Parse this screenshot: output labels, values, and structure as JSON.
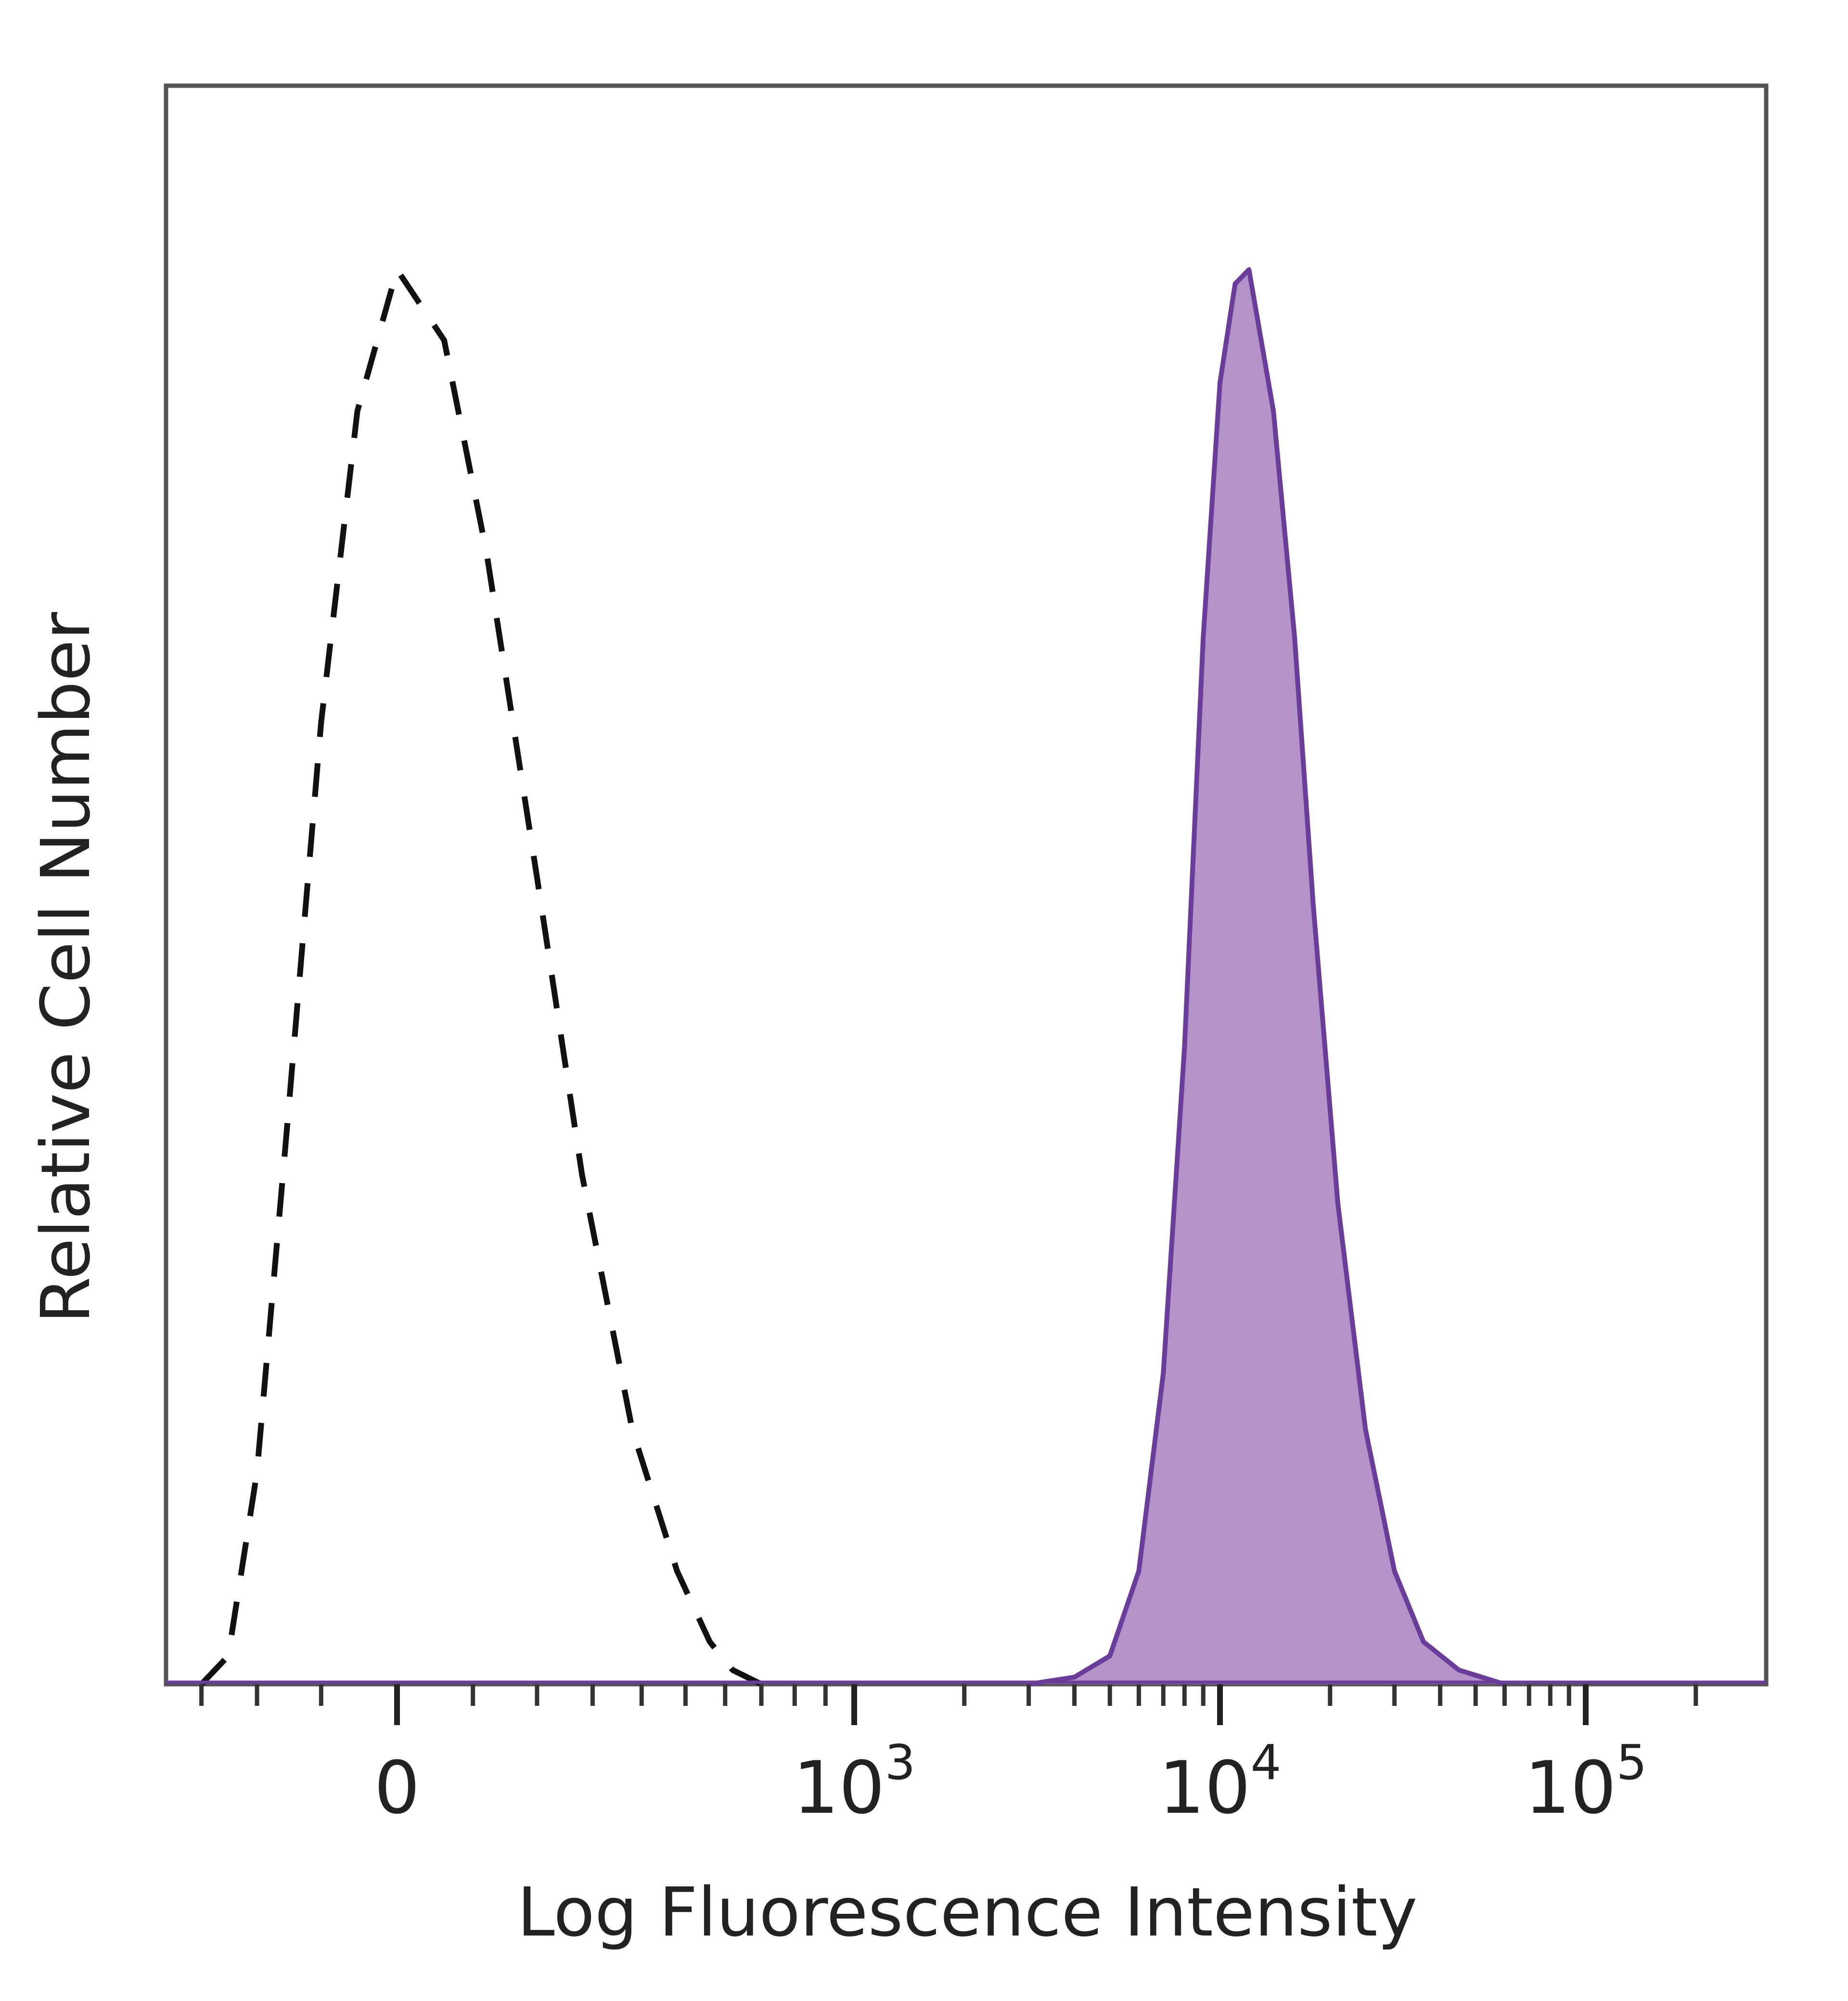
{
  "chart_data": {
    "type": "area",
    "title": "",
    "xlabel": "Log Fluorescence Intensity",
    "ylabel": "Relative Cell Number",
    "x_scale": "biexponential",
    "x_ticks": [
      {
        "value": 0,
        "label": "0",
        "exponent": ""
      },
      {
        "value": 1000,
        "label": "10",
        "exponent": "3"
      },
      {
        "value": 10000,
        "label": "10",
        "exponent": "4"
      },
      {
        "value": 100000,
        "label": "10",
        "exponent": "5"
      }
    ],
    "ylim": [
      0,
      100
    ],
    "grid": false,
    "legend": "none",
    "series": [
      {
        "role": "control",
        "style": "dashed",
        "color": "#111111",
        "points": [
          [
            -300,
            0
          ],
          [
            -250,
            2
          ],
          [
            -200,
            15
          ],
          [
            -150,
            40
          ],
          [
            -100,
            68
          ],
          [
            -50,
            90
          ],
          [
            0,
            100
          ],
          [
            60,
            95
          ],
          [
            120,
            80
          ],
          [
            200,
            57
          ],
          [
            280,
            36
          ],
          [
            380,
            18
          ],
          [
            480,
            8
          ],
          [
            560,
            3
          ],
          [
            620,
            1
          ],
          [
            700,
            0
          ]
        ]
      },
      {
        "role": "stained",
        "style": "filled",
        "color": "#6a3d9a",
        "fill": "#b493c8",
        "points": [
          [
            3000,
            0
          ],
          [
            4000,
            0.5
          ],
          [
            5000,
            2
          ],
          [
            6000,
            8
          ],
          [
            7000,
            22
          ],
          [
            8000,
            45
          ],
          [
            9000,
            74
          ],
          [
            10000,
            92
          ],
          [
            11000,
            99
          ],
          [
            12000,
            100
          ],
          [
            14000,
            90
          ],
          [
            16000,
            74
          ],
          [
            18000,
            55
          ],
          [
            21000,
            34
          ],
          [
            25000,
            18
          ],
          [
            30000,
            8
          ],
          [
            36000,
            3
          ],
          [
            45000,
            1
          ],
          [
            60000,
            0
          ]
        ]
      }
    ]
  }
}
